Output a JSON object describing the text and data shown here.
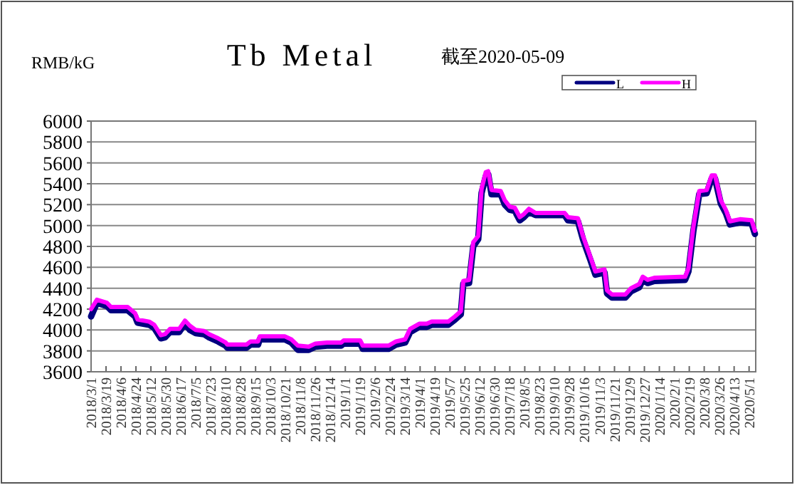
{
  "chart_data": {
    "type": "line",
    "title": "Tb Metal",
    "subtitle": "截至2020-05-09",
    "ylabel": "RMB/kG",
    "legend": "top right",
    "grid": "y",
    "marker": "none",
    "line_style": "solid",
    "x": [
      "2018-03-01",
      "2018-03-08",
      "2018-03-20",
      "2018-03-25",
      "2018-04-14",
      "2018-04-23",
      "2018-04-26",
      "2018-05-10",
      "2018-05-16",
      "2018-05-24",
      "2018-05-29",
      "2018-06-04",
      "2018-06-15",
      "2018-06-22",
      "2018-06-28",
      "2018-07-05",
      "2018-07-15",
      "2018-07-21",
      "2018-08-01",
      "2018-08-10",
      "2018-08-12",
      "2018-09-04",
      "2018-09-09",
      "2018-09-18",
      "2018-09-20",
      "2018-10-20",
      "2018-10-28",
      "2018-11-05",
      "2018-11-18",
      "2018-11-26",
      "2018-12-10",
      "2018-12-27",
      "2018-12-30",
      "2019-01-19",
      "2019-01-22",
      "2019-02-22",
      "2019-03-03",
      "2019-03-14",
      "2019-03-20",
      "2019-03-31",
      "2019-04-09",
      "2019-04-15",
      "2019-05-05",
      "2019-05-13",
      "2019-05-20",
      "2019-05-23",
      "2019-05-30",
      "2019-06-04",
      "2019-06-10",
      "2019-06-14",
      "2019-06-19",
      "2019-06-22",
      "2019-06-26",
      "2019-07-07",
      "2019-07-12",
      "2019-07-18",
      "2019-07-24",
      "2019-07-30",
      "2019-08-04",
      "2019-08-10",
      "2019-08-18",
      "2019-09-22",
      "2019-09-26",
      "2019-10-08",
      "2019-10-14",
      "2019-10-23",
      "2019-10-29",
      "2019-11-09",
      "2019-11-12",
      "2019-11-18",
      "2019-12-04",
      "2019-12-11",
      "2019-12-21",
      "2019-12-25",
      "2019-12-31",
      "2020-01-08",
      "2020-02-14",
      "2020-02-18",
      "2020-02-24",
      "2020-03-02",
      "2020-03-11",
      "2020-03-17",
      "2020-03-21",
      "2020-03-28",
      "2020-04-03",
      "2020-04-08",
      "2020-04-20",
      "2020-05-04",
      "2020-05-08"
    ],
    "series": [
      {
        "name": "L",
        "color": "#000080",
        "values": [
          4130,
          4260,
          4230,
          4190,
          4190,
          4130,
          4070,
          4050,
          4020,
          3920,
          3930,
          3980,
          3980,
          4060,
          4000,
          3970,
          3960,
          3930,
          3890,
          3850,
          3830,
          3830,
          3860,
          3860,
          3910,
          3910,
          3880,
          3810,
          3810,
          3840,
          3850,
          3850,
          3870,
          3870,
          3820,
          3820,
          3860,
          3880,
          3980,
          4030,
          4030,
          4050,
          4050,
          4100,
          4150,
          4440,
          4450,
          4800,
          4870,
          5310,
          5470,
          5490,
          5300,
          5300,
          5200,
          5150,
          5140,
          5050,
          5080,
          5130,
          5100,
          5100,
          5050,
          5040,
          4870,
          4670,
          4530,
          4550,
          4350,
          4310,
          4310,
          4370,
          4410,
          4480,
          4450,
          4470,
          4480,
          4560,
          4950,
          5300,
          5310,
          5450,
          5450,
          5210,
          5120,
          5010,
          5030,
          5020,
          4920
        ]
      },
      {
        "name": "H",
        "color": "#ff00ff",
        "values": [
          4200,
          4290,
          4260,
          4220,
          4220,
          4160,
          4100,
          4080,
          4050,
          3950,
          3960,
          4010,
          4010,
          4090,
          4040,
          4000,
          3990,
          3960,
          3920,
          3880,
          3860,
          3860,
          3890,
          3890,
          3940,
          3940,
          3910,
          3850,
          3840,
          3870,
          3880,
          3880,
          3900,
          3900,
          3850,
          3850,
          3890,
          3910,
          4010,
          4060,
          4060,
          4080,
          4080,
          4130,
          4180,
          4470,
          4480,
          4840,
          4900,
          5350,
          5510,
          5520,
          5340,
          5330,
          5240,
          5180,
          5170,
          5080,
          5110,
          5160,
          5120,
          5120,
          5080,
          5070,
          4900,
          4700,
          4560,
          4580,
          4380,
          4340,
          4340,
          4400,
          4440,
          4510,
          4480,
          4500,
          4510,
          4590,
          4990,
          5330,
          5340,
          5480,
          5480,
          5240,
          5150,
          5040,
          5060,
          5050,
          4950
        ]
      }
    ],
    "xlim": [
      "2018-03-01",
      "2020-05-09"
    ],
    "ylim": [
      3600,
      6000
    ],
    "yticks": [
      3600,
      3800,
      4000,
      4200,
      4400,
      4600,
      4800,
      5000,
      5200,
      5400,
      5600,
      5800,
      6000
    ],
    "xticks": [
      {
        "value": "2018-03-01",
        "label": "2018/3/1"
      },
      {
        "value": "2018-03-19",
        "label": "2018/3/19"
      },
      {
        "value": "2018-04-06",
        "label": "2018/4/6"
      },
      {
        "value": "2018-04-24",
        "label": "2018/4/24"
      },
      {
        "value": "2018-05-12",
        "label": "2018/5/12"
      },
      {
        "value": "2018-05-30",
        "label": "2018/5/30"
      },
      {
        "value": "2018-06-17",
        "label": "2018/6/17"
      },
      {
        "value": "2018-07-05",
        "label": "2018/7/5"
      },
      {
        "value": "2018-07-23",
        "label": "2018/7/23"
      },
      {
        "value": "2018-08-10",
        "label": "2018/8/10"
      },
      {
        "value": "2018-08-28",
        "label": "2018/8/28"
      },
      {
        "value": "2018-09-15",
        "label": "2018/9/15"
      },
      {
        "value": "2018-10-03",
        "label": "2018/10/3"
      },
      {
        "value": "2018-10-21",
        "label": "2018/10/21"
      },
      {
        "value": "2018-11-08",
        "label": "2018/11/8"
      },
      {
        "value": "2018-11-26",
        "label": "2018/11/26"
      },
      {
        "value": "2018-12-14",
        "label": "2018/12/14"
      },
      {
        "value": "2019-01-01",
        "label": "2019/1/1"
      },
      {
        "value": "2019-01-19",
        "label": "2019/1/19"
      },
      {
        "value": "2019-02-06",
        "label": "2019/2/6"
      },
      {
        "value": "2019-02-24",
        "label": "2019/2/24"
      },
      {
        "value": "2019-03-14",
        "label": "2019/3/14"
      },
      {
        "value": "2019-04-01",
        "label": "2019/4/1"
      },
      {
        "value": "2019-04-19",
        "label": "2019/4/19"
      },
      {
        "value": "2019-05-07",
        "label": "2019/5/7"
      },
      {
        "value": "2019-05-25",
        "label": "2019/5/25"
      },
      {
        "value": "2019-06-12",
        "label": "2019/6/12"
      },
      {
        "value": "2019-06-30",
        "label": "2019/6/30"
      },
      {
        "value": "2019-07-18",
        "label": "2019/7/18"
      },
      {
        "value": "2019-08-05",
        "label": "2019/8/5"
      },
      {
        "value": "2019-08-23",
        "label": "2019/8/23"
      },
      {
        "value": "2019-09-10",
        "label": "2019/9/10"
      },
      {
        "value": "2019-09-28",
        "label": "2019/9/28"
      },
      {
        "value": "2019-10-16",
        "label": "2019/10/16"
      },
      {
        "value": "2019-11-03",
        "label": "2019/11/3"
      },
      {
        "value": "2019-11-21",
        "label": "2019/11/21"
      },
      {
        "value": "2019-12-09",
        "label": "2019/12/9"
      },
      {
        "value": "2019-12-27",
        "label": "2019/12/27"
      },
      {
        "value": "2020-01-14",
        "label": "2020/1/14"
      },
      {
        "value": "2020-02-01",
        "label": "2020/2/1"
      },
      {
        "value": "2020-02-19",
        "label": "2020/2/19"
      },
      {
        "value": "2020-03-08",
        "label": "2020/3/8"
      },
      {
        "value": "2020-03-26",
        "label": "2020/3/26"
      },
      {
        "value": "2020-04-13",
        "label": "2020/4/13"
      },
      {
        "value": "2020-05-01",
        "label": "2020/5/1"
      }
    ]
  }
}
